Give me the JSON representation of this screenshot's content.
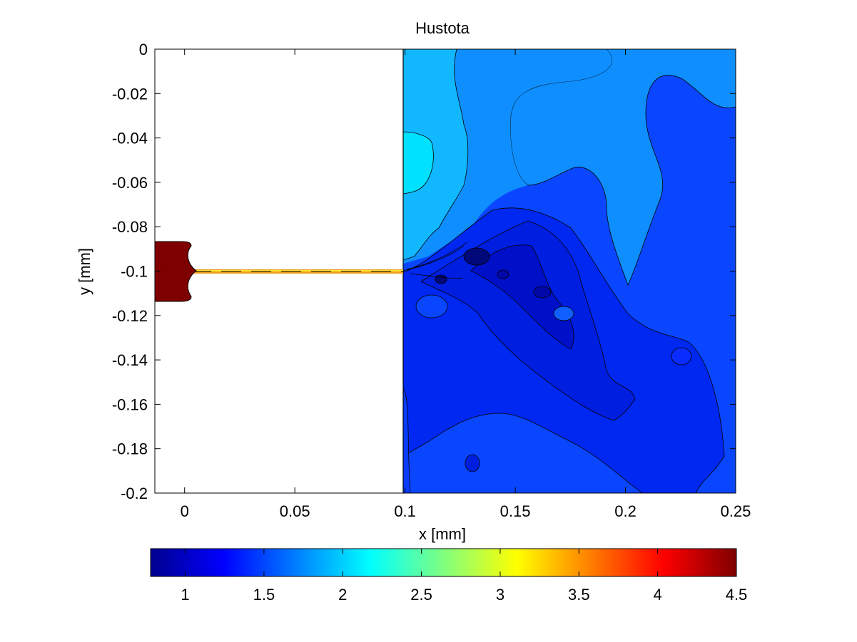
{
  "chart_data": {
    "type": "contour",
    "title": "Hustota",
    "xlabel": "x [mm]",
    "ylabel": "y [mm]",
    "xlim": [
      -0.0135,
      0.25
    ],
    "ylim": [
      -0.2,
      0
    ],
    "xticks": [
      0,
      0.05,
      0.1,
      0.15,
      0.2,
      0.25
    ],
    "xtick_labels": [
      "0",
      "0.05",
      "0.1",
      "0.15",
      "0.2",
      "0.25"
    ],
    "yticks": [
      0,
      -0.02,
      -0.04,
      -0.06,
      -0.08,
      -0.1,
      -0.12,
      -0.14,
      -0.16,
      -0.18,
      -0.2
    ],
    "ytick_labels": [
      "0",
      "-0.02",
      "-0.04",
      "-0.06",
      "-0.08",
      "-0.1",
      "-0.12",
      "-0.14",
      "-0.16",
      "-0.18",
      "-0.2"
    ],
    "colormap": "jet",
    "colorbar": {
      "orientation": "horizontal",
      "location": "bottom",
      "range": [
        0.78,
        4.5
      ],
      "ticks": [
        1,
        1.5,
        2,
        2.5,
        3,
        3.5,
        4,
        4.5
      ],
      "tick_labels": [
        "1",
        "1.5",
        "2",
        "2.5",
        "3",
        "3.5",
        "4",
        "4.5"
      ]
    },
    "regions": [
      {
        "name": "sphere",
        "value": 4.5,
        "center": [
          0,
          -0.1
        ],
        "radius": 0.0135
      },
      {
        "name": "jet",
        "y": -0.1,
        "x_range": [
          0.005,
          0.1
        ],
        "value_range": [
          2.7,
          4.0
        ]
      },
      {
        "name": "background-top-left",
        "value": 2.1
      },
      {
        "name": "background-top",
        "value": 1.85
      },
      {
        "name": "background-right",
        "value": 1.35
      },
      {
        "name": "background-bottom",
        "value": 1.15
      },
      {
        "name": "wake-core",
        "value": 0.95
      }
    ],
    "grid": false
  }
}
